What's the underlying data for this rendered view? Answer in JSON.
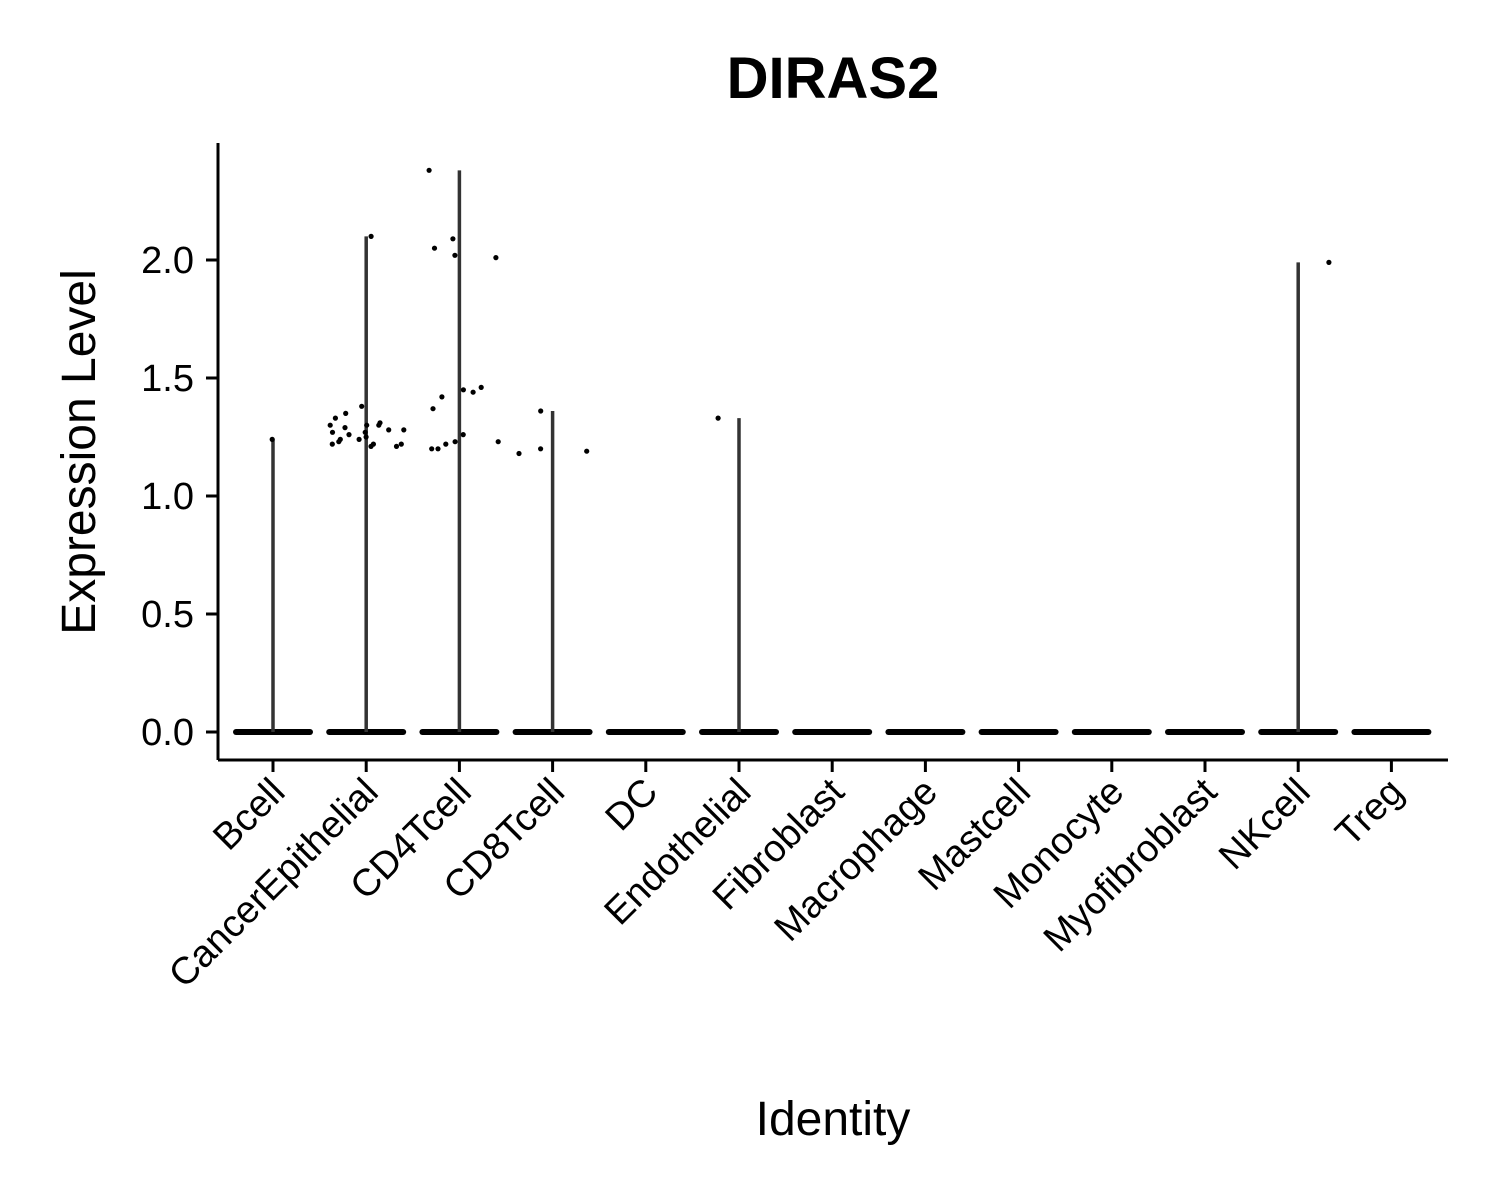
{
  "chart_data": {
    "type": "violin",
    "title": "DIRAS2",
    "xlabel": "Identity",
    "ylabel": "Expression Level",
    "ylim": [
      -0.12,
      2.5
    ],
    "yticks": [
      "0.0",
      "0.5",
      "1.0",
      "1.5",
      "2.0"
    ],
    "ytick_values": [
      0.0,
      0.5,
      1.0,
      1.5,
      2.0
    ],
    "grid": false,
    "legend": "none",
    "colors": {
      "violin": "#333333",
      "points": "#000000",
      "axis": "#000000"
    },
    "categories": [
      "Bcell",
      "CancerEpithelial",
      "CD4Tcell",
      "CD8Tcell",
      "DC",
      "Endothelial",
      "Fibroblast",
      "Macrophage",
      "Mastcell",
      "Monocyte",
      "Myofibroblast",
      "NKcell",
      "Treg"
    ],
    "max_values": [
      1.24,
      2.1,
      2.38,
      1.36,
      0.0,
      1.33,
      0.0,
      0.0,
      0.0,
      0.0,
      0.0,
      1.99,
      0.0
    ],
    "points": [
      {
        "category": "Bcell",
        "values": [
          1.24
        ]
      },
      {
        "category": "CancerEpithelial",
        "values": [
          2.1,
          1.33,
          1.35,
          1.38,
          1.3,
          1.27,
          1.21,
          1.22,
          1.24,
          1.26,
          1.28,
          1.3,
          1.22,
          1.25,
          1.29,
          1.31,
          1.23,
          1.21,
          1.27,
          1.24,
          1.3,
          1.22,
          1.28
        ]
      },
      {
        "category": "CD4Tcell",
        "values": [
          2.38,
          2.02,
          2.01,
          2.05,
          2.09,
          1.45,
          1.44,
          1.42,
          1.37,
          1.23,
          1.23,
          1.2,
          1.26,
          1.22,
          1.2,
          1.46
        ]
      },
      {
        "category": "CD8Tcell",
        "values": [
          1.36,
          1.2,
          1.18,
          1.19
        ]
      },
      {
        "category": "Endothelial",
        "values": [
          1.33
        ]
      },
      {
        "category": "NKcell",
        "values": [
          1.99
        ]
      }
    ]
  }
}
